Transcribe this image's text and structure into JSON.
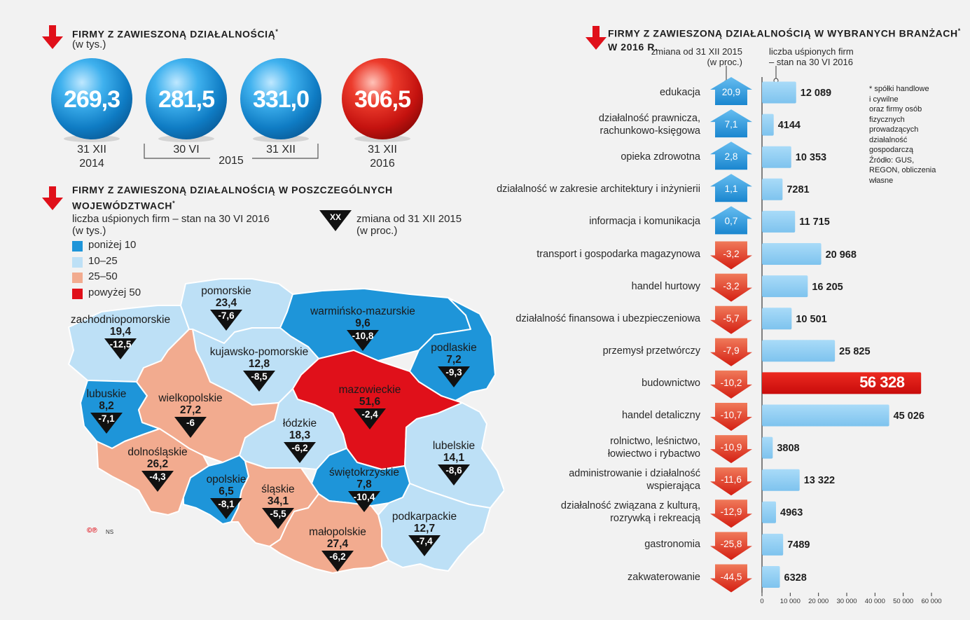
{
  "colors": {
    "blue_dark": "#1e95d9",
    "blue_light": "#bde0f6",
    "salmon": "#f2ab8f",
    "red": "#e0101a",
    "bar_blue": "#8fcdf2",
    "arrow_up": "#2c9ad8",
    "arrow_down": "#e43a22"
  },
  "top_section": {
    "title": "Firmy z zawieszoną działalnością",
    "title_mark": "*",
    "subtitle": "(w tys.)",
    "circles": [
      {
        "value": "269,3",
        "label1": "31 XII",
        "label2": "2014",
        "color": "blue"
      },
      {
        "value": "281,5",
        "label1": "30 VI",
        "label2": "",
        "color": "blue"
      },
      {
        "value": "331,0",
        "label1": "31 XII",
        "label2": "",
        "color": "blue"
      },
      {
        "value": "306,5",
        "label1": "31 XII",
        "label2": "2016",
        "color": "red"
      }
    ],
    "year_bracket": "2015"
  },
  "map_section": {
    "title_line1": "Firmy z zawieszoną działalnością w poszczególnych",
    "title_line2": "województwach",
    "title_mark": "*",
    "sub1": "liczba uśpionych firm – stan na 30 VI 2016",
    "sub2": "(w tys.)",
    "change_badge": "XX",
    "change_legend1": "zmiana od 31 XII 2015",
    "change_legend2": "(w proc.)",
    "legend": [
      {
        "label": "poniżej 10",
        "color": "#1e95d9"
      },
      {
        "label": "10–25",
        "color": "#bde0f6"
      },
      {
        "label": "25–50",
        "color": "#f2ab8f"
      },
      {
        "label": "powyżej 50",
        "color": "#e0101a"
      }
    ],
    "regions": [
      {
        "name": "zachodniopomorskie",
        "value": "19,4",
        "change": "-12,5"
      },
      {
        "name": "pomorskie",
        "value": "23,4",
        "change": "-7,6"
      },
      {
        "name": "warmińsko-mazurskie",
        "value": "9,6",
        "change": "-10,8"
      },
      {
        "name": "podlaskie",
        "value": "7,2",
        "change": "-9,3"
      },
      {
        "name": "kujawsko-pomorskie",
        "value": "12,8",
        "change": "-8,5"
      },
      {
        "name": "lubuskie",
        "value": "8,2",
        "change": "-7,1"
      },
      {
        "name": "wielkopolskie",
        "value": "27,2",
        "change": "-6"
      },
      {
        "name": "mazowieckie",
        "value": "51,6",
        "change": "-2,4"
      },
      {
        "name": "łódzkie",
        "value": "18,3",
        "change": "-6,2"
      },
      {
        "name": "dolnośląskie",
        "value": "26,2",
        "change": "-4,3"
      },
      {
        "name": "lubelskie",
        "value": "14,1",
        "change": "-8,6"
      },
      {
        "name": "świętokrzyskie",
        "value": "7,8",
        "change": "-10,4"
      },
      {
        "name": "opolskie",
        "value": "6,5",
        "change": "-8,1"
      },
      {
        "name": "śląskie",
        "value": "34,1",
        "change": "-5,5"
      },
      {
        "name": "podkarpackie",
        "value": "12,7",
        "change": "-7,4"
      },
      {
        "name": "małopolskie",
        "value": "27,4",
        "change": "-6,2"
      }
    ],
    "credit": "NS"
  },
  "chart_data": {
    "type": "bar",
    "title": "Firmy z zawieszoną działalnością w wybranych branżach",
    "title_mark": "*",
    "title_line2": "w 2016 r.",
    "change_header1": "zmiana od 31 XII 2015",
    "change_header2": "(w proc.)",
    "value_header1": "liczba uśpionych firm",
    "value_header2": "– stan na 30 VI 2016",
    "xlim": [
      0,
      60000
    ],
    "xticks": [
      "0",
      "10 000",
      "20 000",
      "30 000",
      "40 000",
      "50 000",
      "60 000"
    ],
    "categories": [
      "edukacja",
      "działalność prawnicza, rachunkowo-księgowa",
      "opieka zdrowotna",
      "działalność w zakresie architektury i inżynierii",
      "informacja i komunikacja",
      "transport i gospodarka magazynowa",
      "handel hurtowy",
      "działalność finansowa i ubezpieczeniowa",
      "przemysł przetwórczy",
      "budownictwo",
      "handel detaliczny",
      "rolnictwo, leśnictwo, łowiectwo i rybactwo",
      "administrowanie i działalność wspierająca",
      "działalność związana z kulturą, rozrywką i rekreacją",
      "gastronomia",
      "zakwaterowanie"
    ],
    "category_lines": [
      [
        "edukacja"
      ],
      [
        "działalność prawnicza,",
        "rachunkowo-księgowa"
      ],
      [
        "opieka zdrowotna"
      ],
      [
        "działalność w zakresie architektury i inżynierii"
      ],
      [
        "informacja i komunikacja"
      ],
      [
        "transport i gospodarka magazynowa"
      ],
      [
        "handel hurtowy"
      ],
      [
        "działalność finansowa i ubezpieczeniowa"
      ],
      [
        "przemysł przetwórczy"
      ],
      [
        "budownictwo"
      ],
      [
        "handel detaliczny"
      ],
      [
        "rolnictwo, leśnictwo,",
        "łowiectwo i rybactwo"
      ],
      [
        "administrowanie i działalność",
        "wspierająca"
      ],
      [
        "działalność związana z kulturą,",
        "rozrywką i rekreacją"
      ],
      [
        "gastronomia"
      ],
      [
        "zakwaterowanie"
      ]
    ],
    "values": [
      12089,
      4144,
      10353,
      7281,
      11715,
      20968,
      16205,
      10501,
      25825,
      56328,
      45026,
      3808,
      13322,
      4963,
      7489,
      6328
    ],
    "value_labels": [
      "12 089",
      "4144",
      "10 353",
      "7281",
      "11 715",
      "20 968",
      "16 205",
      "10 501",
      "25 825",
      "56 328",
      "45 026",
      "3808",
      "13 322",
      "4963",
      "7489",
      "6328"
    ],
    "changes": [
      20.9,
      7.1,
      2.8,
      1.1,
      0.7,
      -3.2,
      -3.2,
      -5.7,
      -7.9,
      -10.2,
      -10.7,
      -10.9,
      -11.6,
      -12.9,
      -25.8,
      -44.5
    ],
    "change_labels": [
      "20,9",
      "7,1",
      "2,8",
      "1,1",
      "0,7",
      "-3,2",
      "-3,2",
      "-5,7",
      "-7,9",
      "-10,2",
      "-10,7",
      "-10,9",
      "-11,6",
      "-12,9",
      "-25,8",
      "-44,5"
    ],
    "highlight_index": 9,
    "note_lines": [
      "* spółki handlowe",
      "i cywilne",
      "oraz firmy osób",
      "fizycznych",
      "prowadzących",
      "działalność",
      "gospodarczą",
      "Źródło: GUS,",
      "REGON, obliczenia",
      "własne"
    ]
  }
}
